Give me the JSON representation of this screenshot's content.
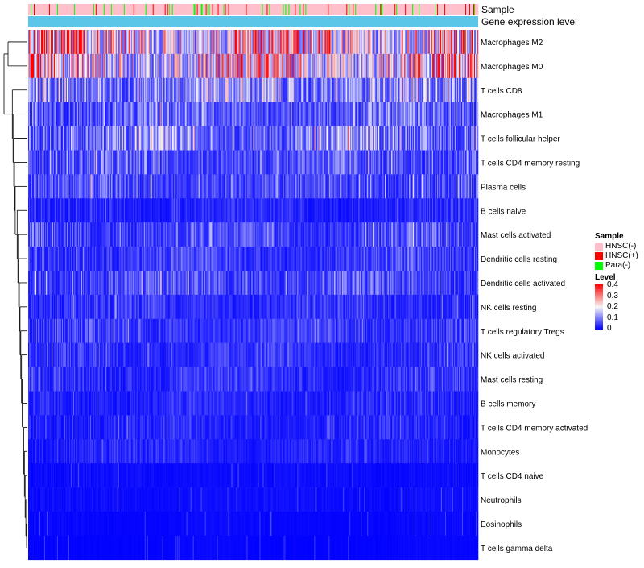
{
  "chart_data": {
    "type": "heatmap",
    "row_labels": [
      "Macrophages M2",
      "Macrophages M0",
      "T cells CD8",
      "Macrophages M1",
      "T cells follicular helper",
      "T cells CD4 memory resting",
      "Plasma cells",
      "B cells naive",
      "Mast cells activated",
      "Dendritic cells resting",
      "Dendritic cells activated",
      "NK cells resting",
      "T cells regulatory  Tregs",
      "NK cells activated",
      "Mast cells resting",
      "B cells memory",
      "T cells CD4 memory activated",
      "Monocytes",
      "T cells CD4 naive",
      "Neutrophils",
      "Eosinophils",
      "T cells gamma delta"
    ],
    "row_mean_level": [
      0.22,
      0.2,
      0.12,
      0.08,
      0.1,
      0.07,
      0.06,
      0.03,
      0.06,
      0.05,
      0.06,
      0.04,
      0.05,
      0.04,
      0.04,
      0.03,
      0.03,
      0.03,
      0.01,
      0.01,
      0.005,
      0.003
    ],
    "annotation_tracks": [
      {
        "name": "Sample",
        "categories": [
          "HNSC(-)",
          "HNSC(+)",
          "Para(-)"
        ],
        "dominant": "HNSC(-)"
      },
      {
        "name": "Gene expression level"
      }
    ],
    "color_scale": {
      "min": 0,
      "max": 0.4,
      "ticks": [
        "0.4",
        "0.3",
        "0.2",
        "0.1",
        "0"
      ],
      "low": "#0000ff",
      "mid": "#f7f7f7",
      "high": "#ff0000"
    },
    "sample_colors": {
      "HNSC(-)": "#ffc0cb",
      "HNSC(+)": "#ff0000",
      "Para(-)": "#00ff00"
    },
    "expression_bar_color": "#5bc6e8",
    "dendrogram": "left",
    "columns": 560
  },
  "legend": {
    "sample_title": "Sample",
    "sample_items": [
      "HNSC(-)",
      "HNSC(+)",
      "Para(-)"
    ],
    "level_title": "Level",
    "level_ticks": [
      "0.4",
      "0.3",
      "0.2",
      "0.1",
      "0"
    ]
  },
  "tracks": {
    "sample_label": "Sample",
    "expression_label": "Gene expression level"
  }
}
